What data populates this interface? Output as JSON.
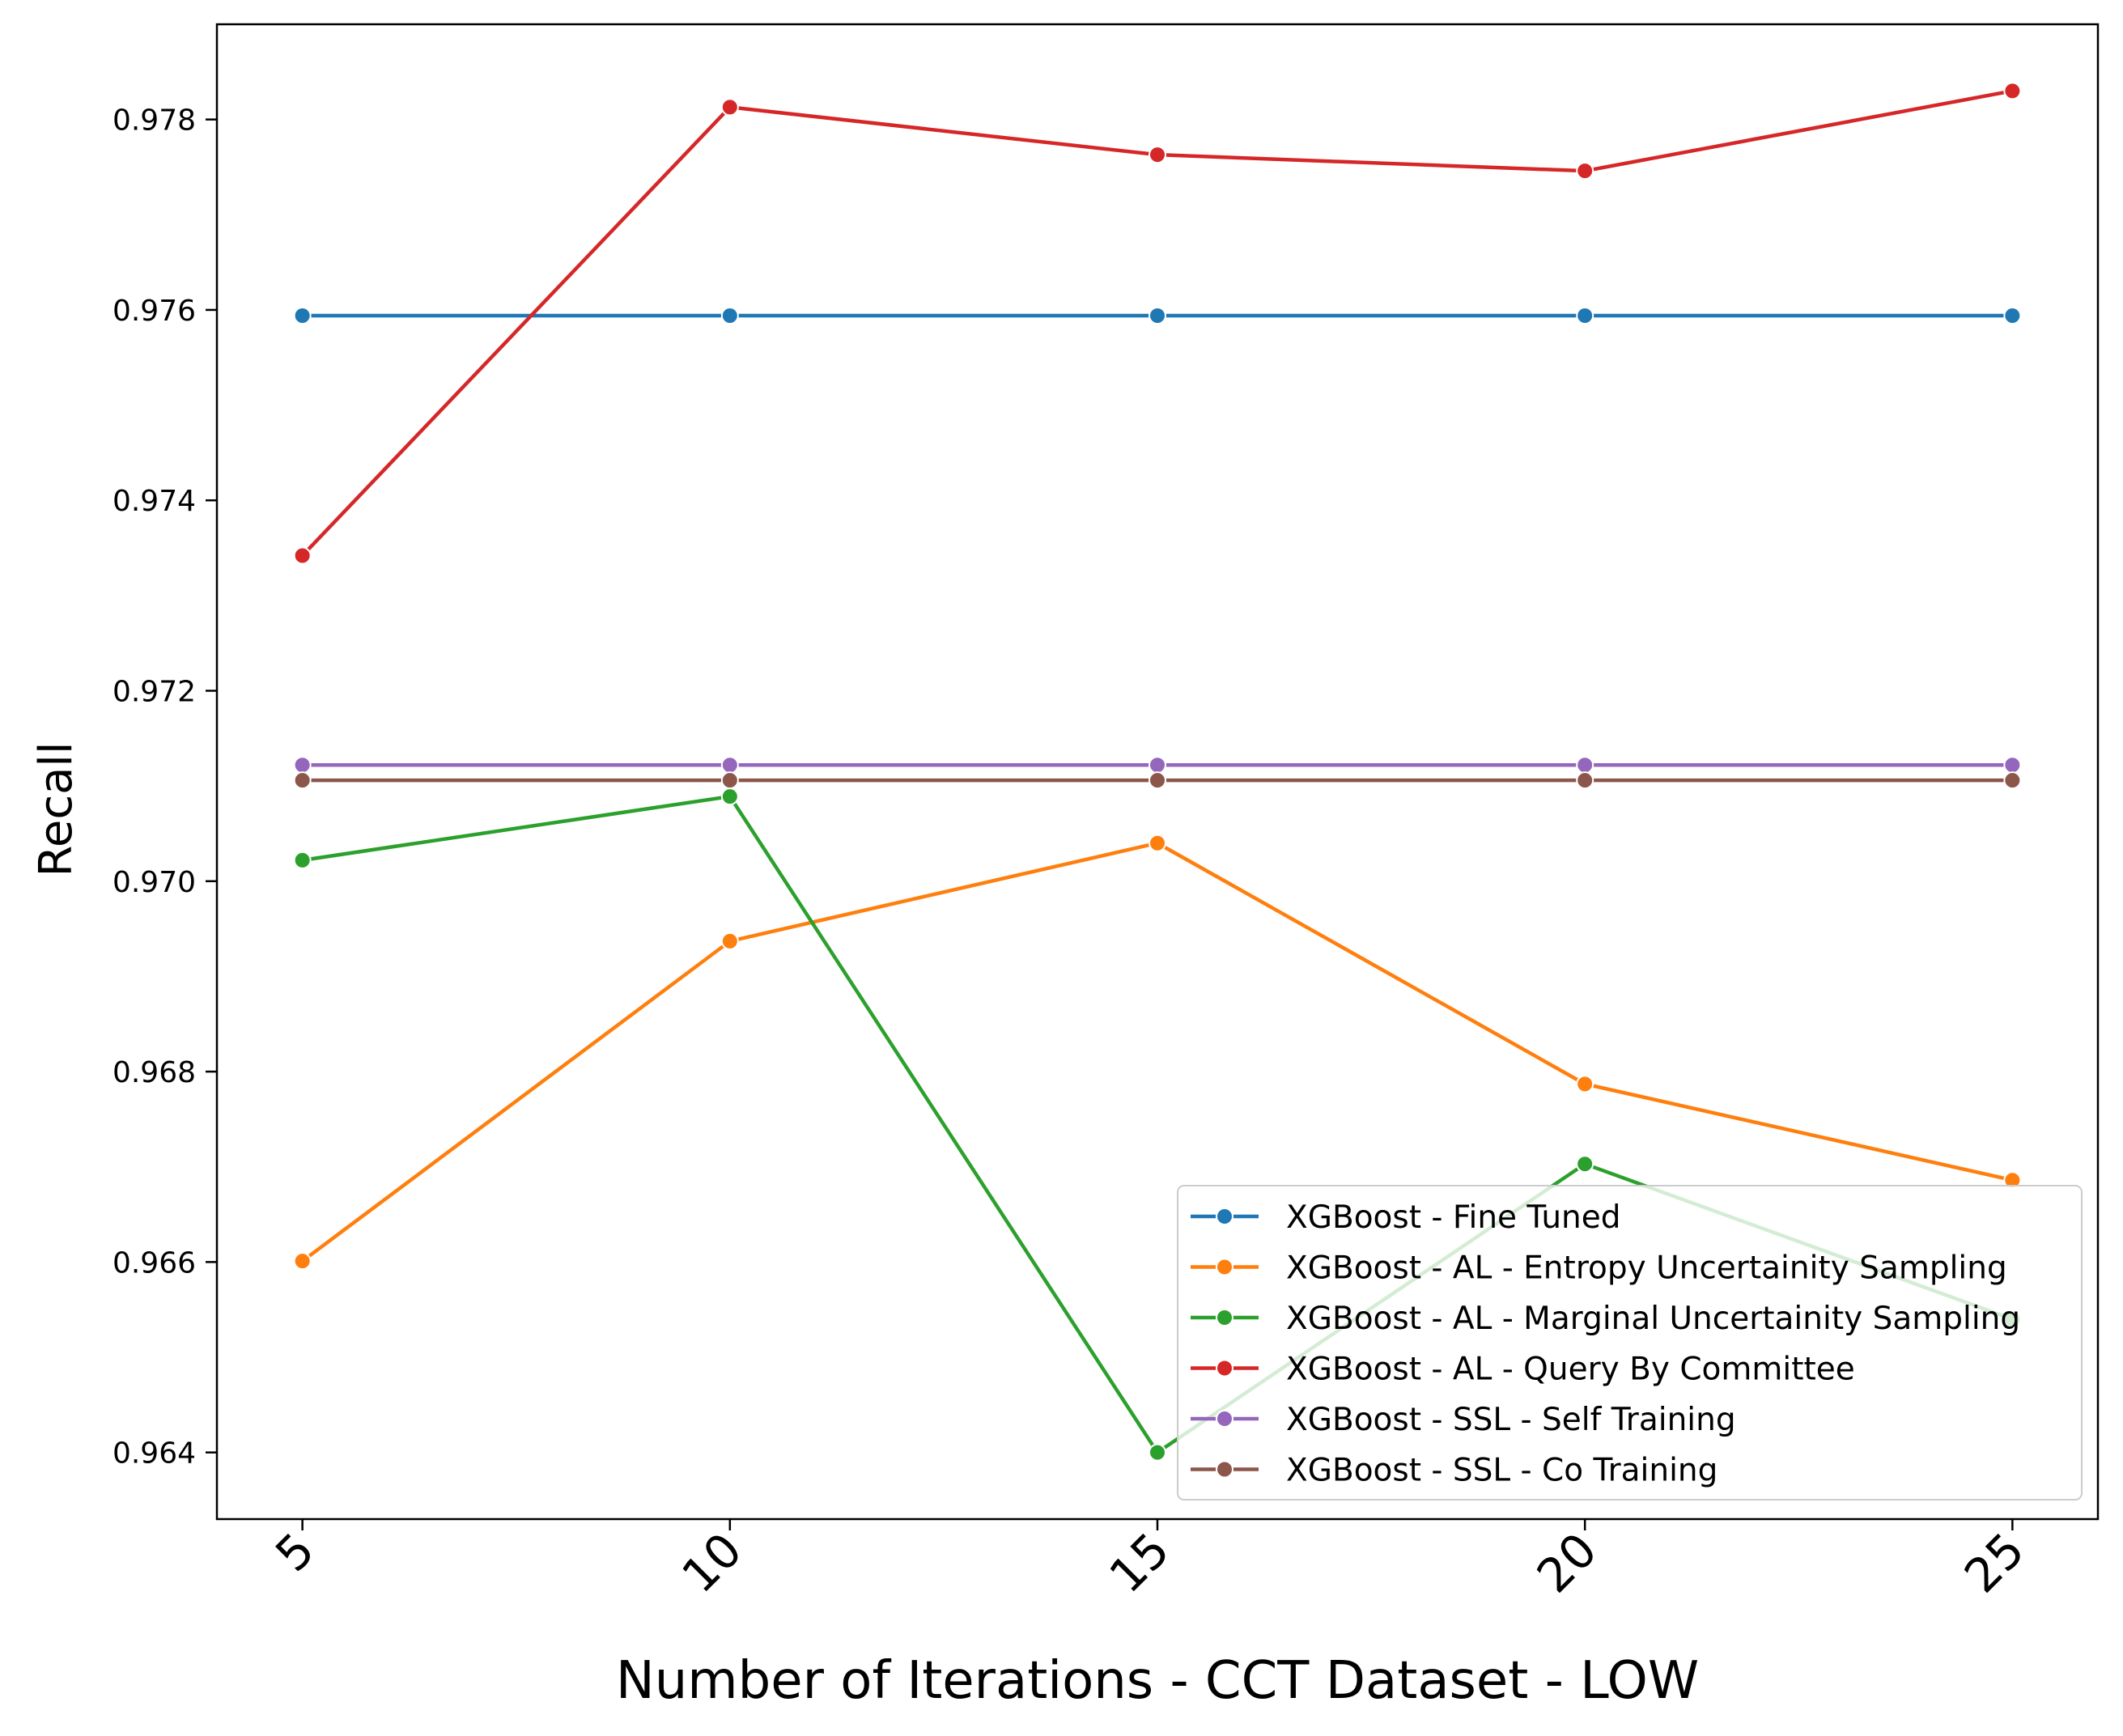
{
  "chart_data": {
    "type": "line",
    "title": "",
    "xlabel": "Number of Iterations - CCT Dataset - LOW",
    "ylabel": "Recall",
    "x": [
      5,
      10,
      15,
      20,
      25
    ],
    "xlim": [
      4,
      26
    ],
    "ylim": [
      0.9633,
      0.979
    ],
    "xticks": [
      "5",
      "10",
      "15",
      "20",
      "25"
    ],
    "yticks": [
      "0.964",
      "0.966",
      "0.968",
      "0.970",
      "0.972",
      "0.974",
      "0.976",
      "0.978"
    ],
    "grid": false,
    "legend_position": "lower-right",
    "series": [
      {
        "name": "XGBoost - Fine Tuned",
        "color": "#1f77b4",
        "values": [
          0.97594,
          0.97594,
          0.97594,
          0.97594,
          0.97594
        ]
      },
      {
        "name": "XGBoost - AL - Entropy Uncertainity Sampling",
        "color": "#ff7f0e",
        "values": [
          0.96601,
          0.96937,
          0.9704,
          0.96787,
          0.96686
        ]
      },
      {
        "name": "XGBoost - AL - Marginal Uncertainity Sampling",
        "color": "#2ca02c",
        "values": [
          0.97022,
          0.97089,
          0.964,
          0.96703,
          0.9654
        ]
      },
      {
        "name": "XGBoost - AL - Query By Committee",
        "color": "#d62728",
        "values": [
          0.97342,
          0.97813,
          0.97763,
          0.97746,
          0.9783
        ]
      },
      {
        "name": "XGBoost - SSL - Self Training",
        "color": "#9467bd",
        "values": [
          0.97122,
          0.97122,
          0.97122,
          0.97122,
          0.97122
        ]
      },
      {
        "name": "XGBoost - SSL - Co Training",
        "color": "#8c564b",
        "values": [
          0.97106,
          0.97106,
          0.97106,
          0.97106,
          0.97106
        ]
      }
    ]
  }
}
